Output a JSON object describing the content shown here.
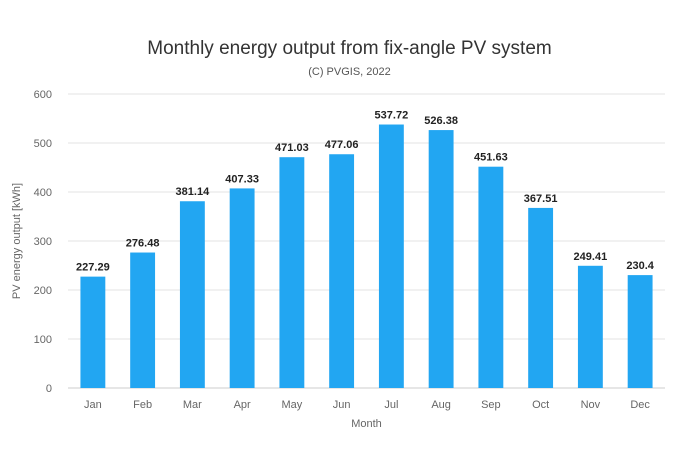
{
  "title": "Monthly energy output from fix-angle PV system",
  "subtitle": "(C) PVGIS, 2022",
  "colors": {
    "bar": "#22a6f2",
    "grid": "#e3e3e3",
    "axis": "#cccccc"
  },
  "chart_data": {
    "type": "bar",
    "title": "Monthly energy output from fix-angle PV system",
    "subtitle": "(C) PVGIS, 2022",
    "xlabel": "Month",
    "ylabel": "PV energy output [kWh]",
    "ylim": [
      0,
      600
    ],
    "yticks": [
      "0",
      "100",
      "200",
      "300",
      "400",
      "500",
      "600"
    ],
    "grid": true,
    "categories": [
      "Jan",
      "Feb",
      "Mar",
      "Apr",
      "May",
      "Jun",
      "Jul",
      "Aug",
      "Sep",
      "Oct",
      "Nov",
      "Dec"
    ],
    "values": [
      227.29,
      276.48,
      381.14,
      407.33,
      471.03,
      477.06,
      537.72,
      526.38,
      451.63,
      367.51,
      249.41,
      230.4
    ],
    "labels": [
      "227.29",
      "276.48",
      "381.14",
      "407.33",
      "471.03",
      "477.06",
      "537.72",
      "526.38",
      "451.63",
      "367.51",
      "249.41",
      "230.4"
    ]
  }
}
